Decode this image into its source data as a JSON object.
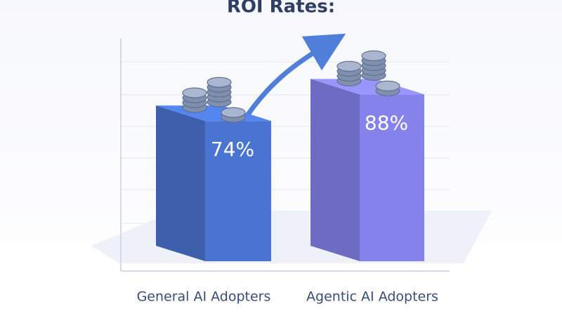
{
  "chart_data": {
    "type": "bar3d",
    "title": "ROI Rates:",
    "categories": [
      "General AI Adopters",
      "Agentic AI Adopters"
    ],
    "values": [
      74,
      88
    ],
    "value_labels": [
      "74%",
      "88%"
    ],
    "colors": [
      "#4a74d2",
      "#8682ec"
    ]
  }
}
